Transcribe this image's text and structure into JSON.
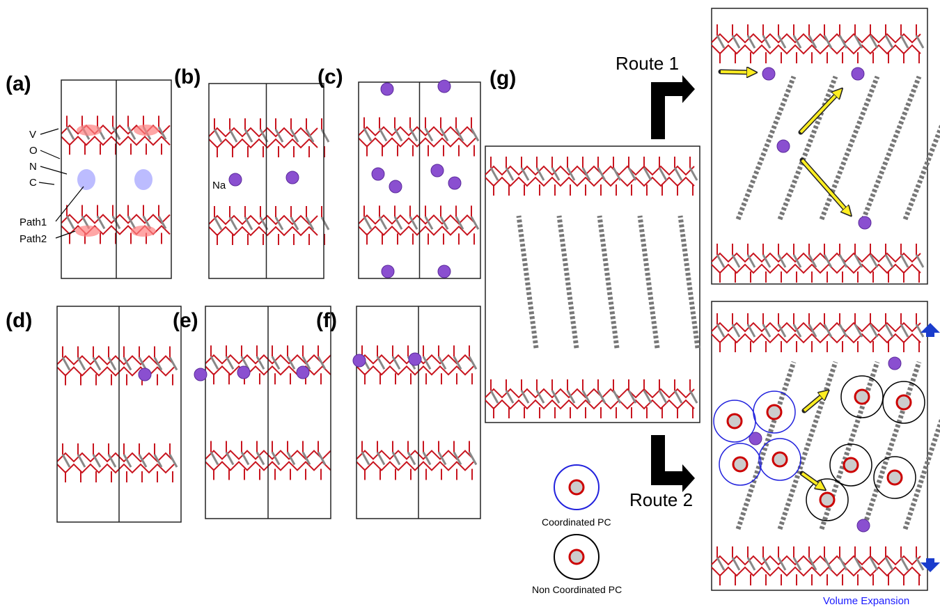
{
  "panel_labels": [
    "(a)",
    "(b)",
    "(c)",
    "(d)",
    "(e)",
    "(f)",
    "(g)"
  ],
  "atom_labels": [
    "V",
    "O",
    "N",
    "C"
  ],
  "path_labels": [
    "Path1",
    "Path2"
  ],
  "ion_label": "Na",
  "routes": [
    "Route 1",
    "Route 2"
  ],
  "legend": [
    "Coordinated PC",
    "Non Coordinated PC"
  ],
  "note": "Volume Expansion"
}
